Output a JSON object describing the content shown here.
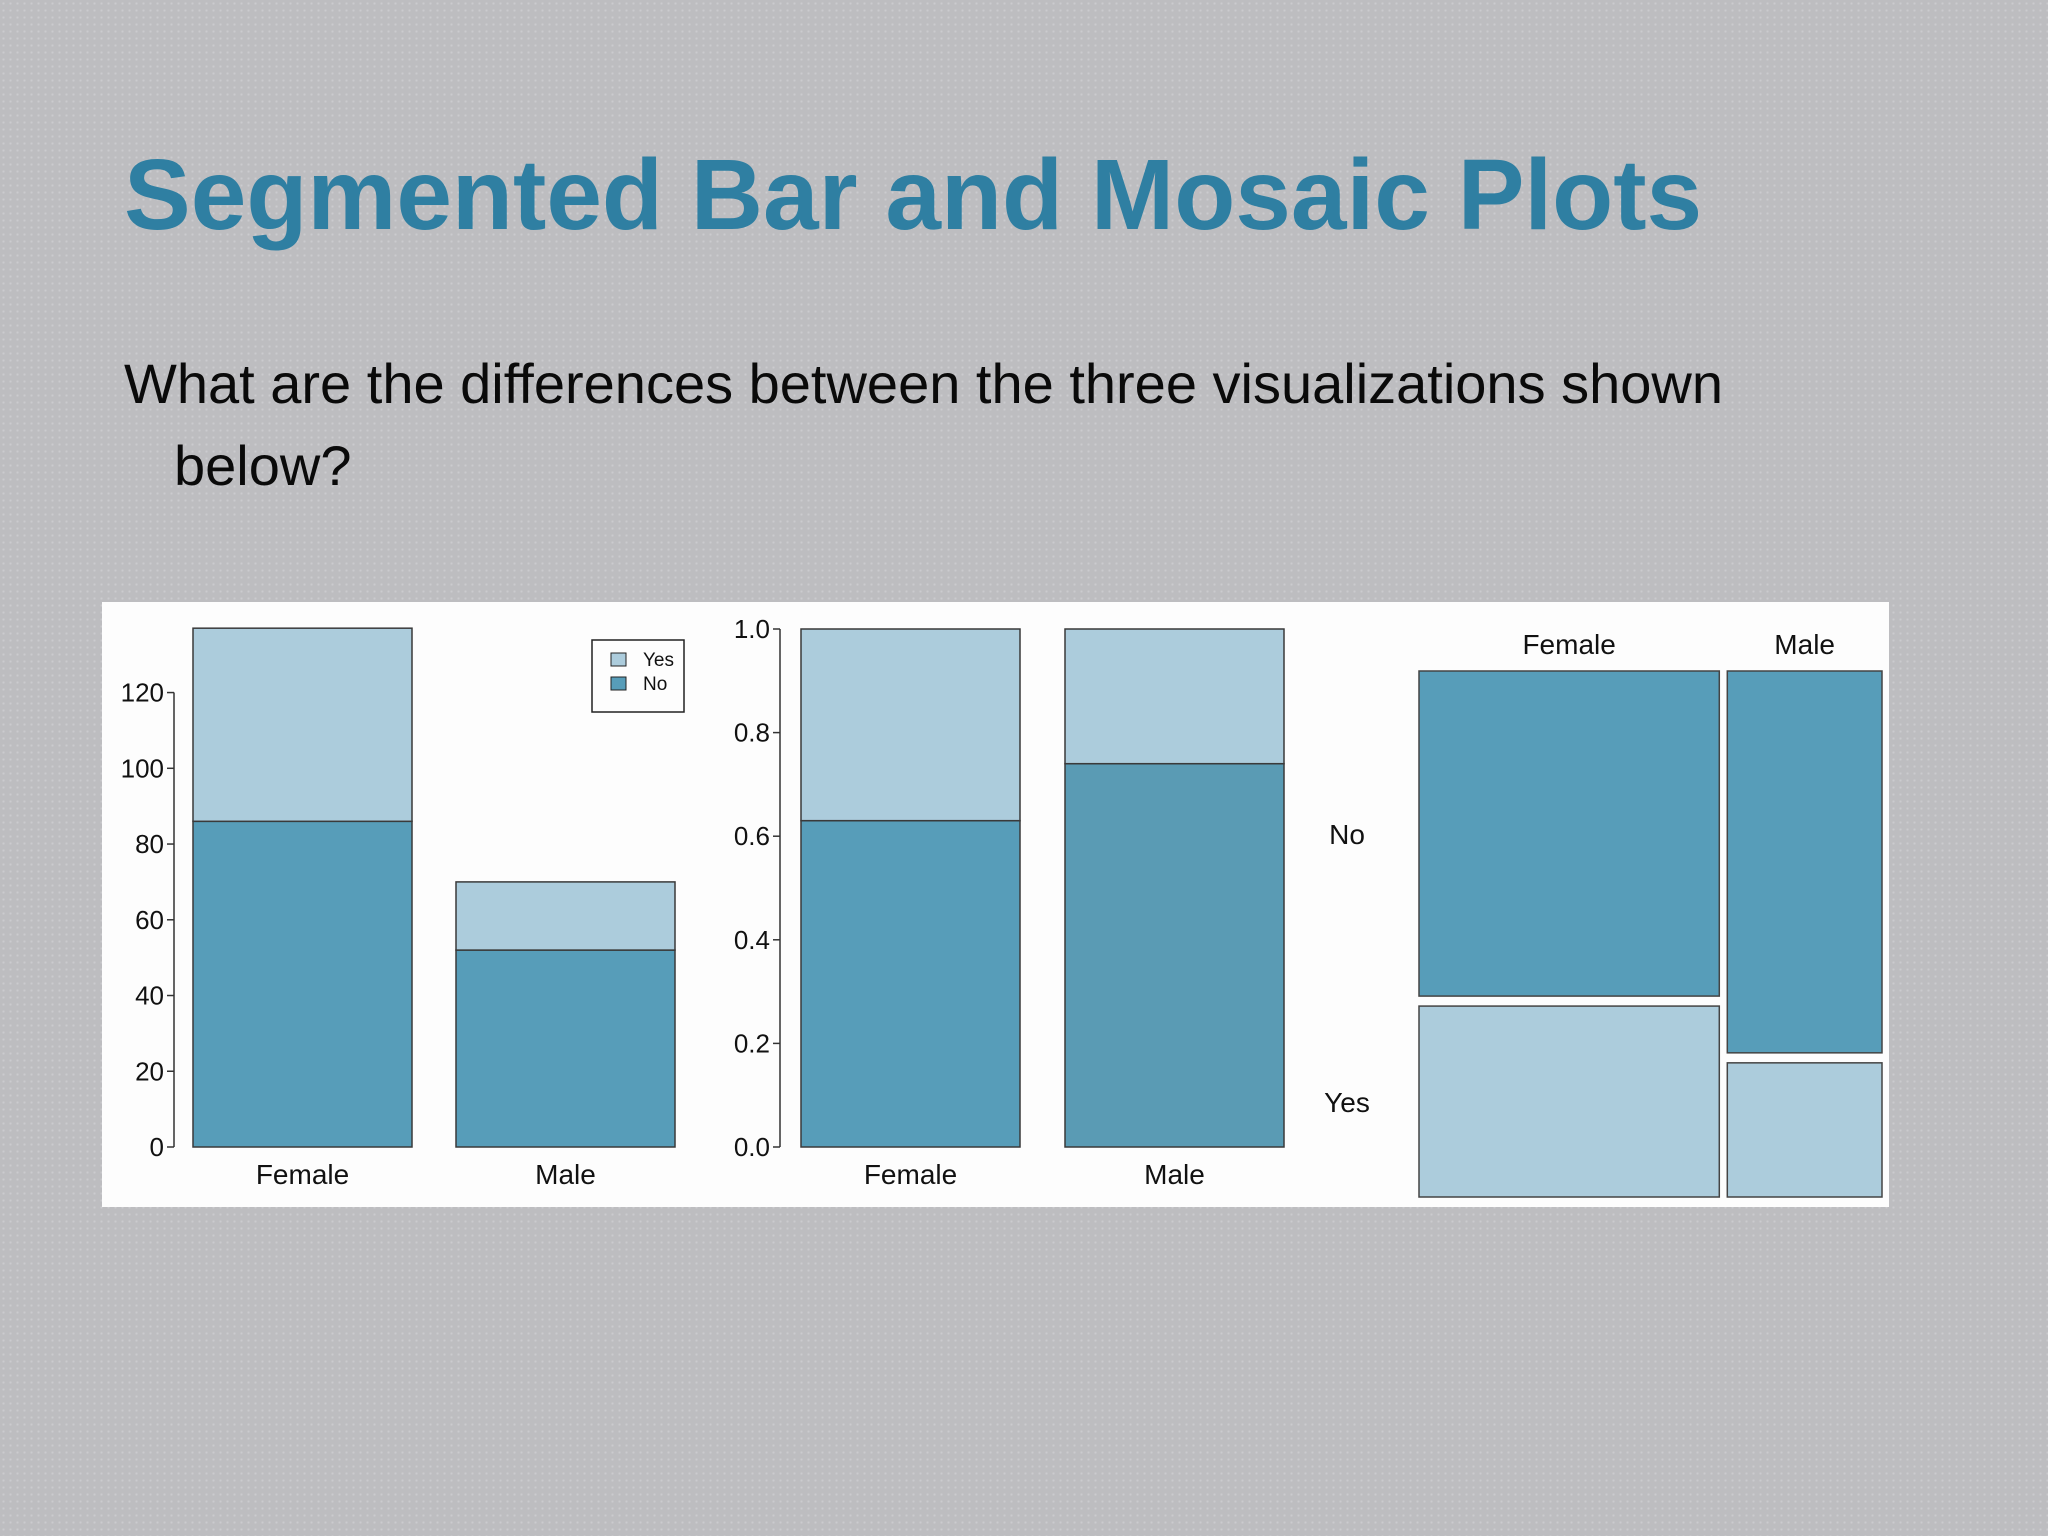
{
  "slide": {
    "title": "Segmented Bar and Mosaic Plots",
    "question": "What are the differences between the three visualizations shown below?"
  },
  "colors": {
    "yes": "#acccdc",
    "no": "#579db9",
    "no_male_prop": "#5a9bb4",
    "title": "#2f7fa2"
  },
  "chart_data": [
    {
      "type": "bar",
      "stacked": true,
      "categories": [
        "Female",
        "Male"
      ],
      "series": [
        {
          "name": "No",
          "values": [
            86,
            52
          ]
        },
        {
          "name": "Yes",
          "values": [
            51,
            18
          ]
        }
      ],
      "ylim": [
        0,
        137
      ],
      "yticks": [
        0,
        20,
        40,
        60,
        80,
        100,
        120
      ],
      "legend": {
        "position": "top-right",
        "entries": [
          "Yes",
          "No"
        ]
      }
    },
    {
      "type": "bar",
      "stacked": true,
      "categories": [
        "Female",
        "Male"
      ],
      "series": [
        {
          "name": "No",
          "values": [
            0.63,
            0.74
          ]
        },
        {
          "name": "Yes",
          "values": [
            0.37,
            0.26
          ]
        }
      ],
      "ylim": [
        0,
        1
      ],
      "yticks": [
        "0.0",
        "0.2",
        "0.4",
        "0.6",
        "0.8",
        "1.0"
      ]
    },
    {
      "type": "mosaic",
      "columns": [
        "Female",
        "Male"
      ],
      "rows": [
        "No",
        "Yes"
      ],
      "column_shares": [
        0.66,
        0.34
      ],
      "row_shares_by_column": {
        "Female": {
          "No": 0.63,
          "Yes": 0.37
        },
        "Male": {
          "No": 0.74,
          "Yes": 0.26
        }
      }
    }
  ]
}
